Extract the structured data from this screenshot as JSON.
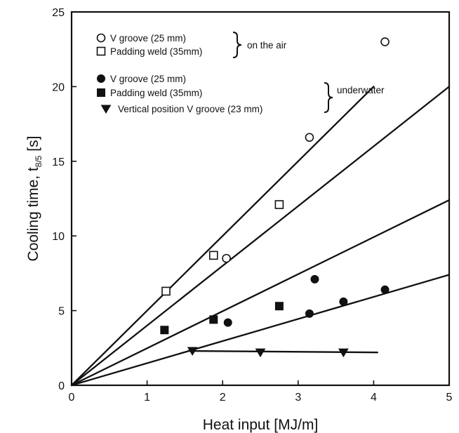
{
  "chart_data": {
    "type": "scatter",
    "xlabel": "Heat input  [MJ/m]",
    "ylabel_main": "Cooling time, t",
    "ylabel_sub": "8/5",
    "ylabel_unit": " [s]",
    "xlim": [
      0,
      5
    ],
    "ylim": [
      0,
      25
    ],
    "xticks": [
      0,
      1,
      2,
      3,
      4,
      5
    ],
    "yticks": [
      0,
      5,
      10,
      15,
      20,
      25
    ],
    "grid": false,
    "legend_position": "top-left",
    "series": [
      {
        "name": "V groove (25 mm)",
        "marker": "circle-open",
        "group": "air",
        "x": [
          2.05,
          3.15,
          4.15
        ],
        "y": [
          8.5,
          16.6,
          23.0
        ]
      },
      {
        "name": "Padding weld (35mm)",
        "marker": "square-open",
        "group": "air",
        "x": [
          1.25,
          1.88,
          2.75
        ],
        "y": [
          6.3,
          8.7,
          12.1
        ]
      },
      {
        "name": "V groove (25 mm)",
        "marker": "circle-filled",
        "group": "underwater",
        "x": [
          2.07,
          3.15,
          3.22,
          3.6,
          4.15
        ],
        "y": [
          4.2,
          4.8,
          7.1,
          5.6,
          6.4
        ]
      },
      {
        "name": "Padding weld (35mm)",
        "marker": "square-filled",
        "group": "underwater",
        "x": [
          1.23,
          1.88,
          2.75
        ],
        "y": [
          3.7,
          4.4,
          5.3
        ]
      },
      {
        "name": "Vertical position V groove (23 mm)",
        "marker": "triangle-down-filled",
        "group": "underwater",
        "x": [
          1.6,
          2.5,
          3.6
        ],
        "y": [
          2.3,
          2.2,
          2.2
        ]
      }
    ],
    "lines": [
      {
        "x": [
          0,
          4.0
        ],
        "y": [
          0,
          20.0
        ]
      },
      {
        "x": [
          0,
          5.0
        ],
        "y": [
          0,
          20.0
        ]
      },
      {
        "x": [
          0,
          5.0
        ],
        "y": [
          0,
          12.4
        ]
      },
      {
        "x": [
          0,
          5.0
        ],
        "y": [
          0,
          7.4
        ]
      },
      {
        "x": [
          1.55,
          4.05
        ],
        "y": [
          2.3,
          2.2
        ]
      }
    ],
    "groups": [
      {
        "label": "on the air"
      },
      {
        "label": "underwater"
      }
    ]
  }
}
